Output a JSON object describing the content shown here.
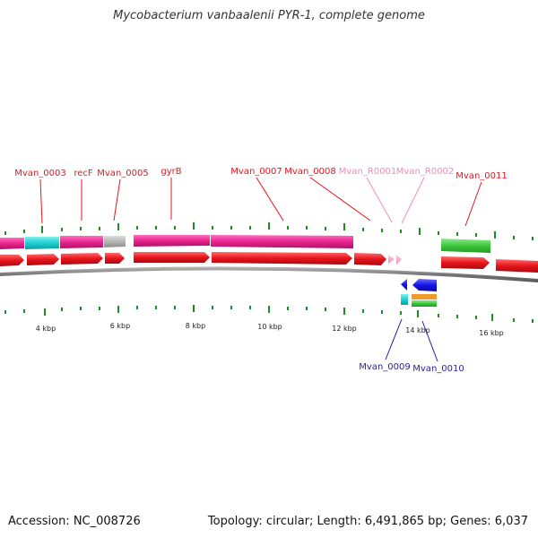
{
  "title": "Mycobacterium vanbaalenii PYR-1, complete genome",
  "accession": "Accession: NC_008726",
  "summary": "Topology: circular; Length: 6,491,865 bp; Genes: 6,037",
  "scale_labels": [
    "4 kbp",
    "6 kbp",
    "8 kbp",
    "10 kbp",
    "12 kbp",
    "14 kbp",
    "16 kbp"
  ],
  "colors": {
    "cds": "#e8141c",
    "gene_magenta": "#e8248c",
    "gene_cyan": "#1ecfd2",
    "gene_gray": "#b4b4b4",
    "gene_green": "#3cc83c",
    "rna_pink": "#f4a8cc",
    "minus_blue": "#1414e6",
    "minus_orange": "#f09a28",
    "tick_green": "#1e8c1e",
    "label_red": "#e8141c",
    "label_pink": "#f08cbc",
    "label_blue": "#1e1eb4"
  },
  "gene_labels": [
    {
      "text": "Mvan_0003",
      "color": "red"
    },
    {
      "text": "recF",
      "color": "red"
    },
    {
      "text": "Mvan_0005",
      "color": "red"
    },
    {
      "text": "gyrB",
      "color": "red"
    },
    {
      "text": "Mvan_0007",
      "color": "red"
    },
    {
      "text": "Mvan_0008",
      "color": "red"
    },
    {
      "text": "Mvan_R0001",
      "color": "pink"
    },
    {
      "text": "Mvan_R0002",
      "color": "pink"
    },
    {
      "text": "Mvan_0011",
      "color": "red"
    },
    {
      "text": "Mvan_0009",
      "color": "blue"
    },
    {
      "text": "Mvan_0010",
      "color": "blue"
    }
  ]
}
